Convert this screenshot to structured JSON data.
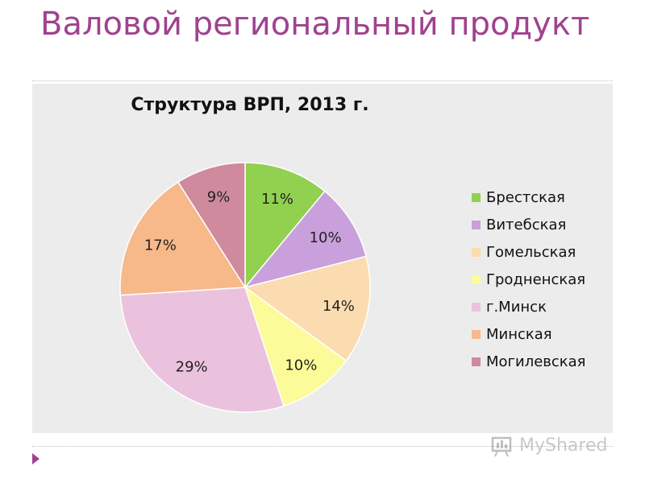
{
  "slide": {
    "title": "Валовой региональный продукт"
  },
  "watermark": {
    "text": "MyShared"
  },
  "chart_data": {
    "type": "pie",
    "title": "Структура ВРП, 2013 г.",
    "legend_position": "right",
    "unit": "%",
    "slices": [
      {
        "label": "Брестская",
        "value": 11,
        "display": "11%",
        "color": "#92d050"
      },
      {
        "label": "Витебская",
        "value": 10,
        "display": "10%",
        "color": "#c9a0dc"
      },
      {
        "label": "Гомельская",
        "value": 14,
        "display": "14%",
        "color": "#fbdcb0"
      },
      {
        "label": "Гродненская",
        "value": 10,
        "display": "10%",
        "color": "#fbfb9a"
      },
      {
        "label": "г.Минск",
        "value": 29,
        "display": "29%",
        "color": "#ebc2dd"
      },
      {
        "label": "Минская",
        "value": 17,
        "display": "17%",
        "color": "#f7b88a"
      },
      {
        "label": "Могилевская",
        "value": 9,
        "display": "9%",
        "color": "#cf8a9e"
      }
    ]
  }
}
